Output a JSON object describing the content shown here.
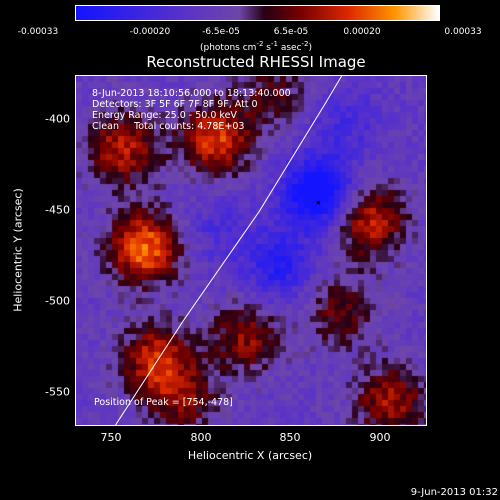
{
  "chart_data": {
    "type": "heatmap",
    "title": "Reconstructed RHESSI Image",
    "xlabel": "Heliocentric X (arcsec)",
    "ylabel": "Heliocentric Y (arcsec)",
    "xlim": [
      730,
      925
    ],
    "ylim": [
      -568,
      -375
    ],
    "x_ticks": [
      "750",
      "800",
      "850",
      "900"
    ],
    "y_ticks": [
      "-400",
      "-450",
      "-500",
      "-550"
    ],
    "colorbar": {
      "ticks": [
        "-0.00033",
        "-0.00020",
        "-6.5e-05",
        "6.5e-05",
        "0.00020",
        "0.00033"
      ],
      "unit": "(photons cm-2 s-1 asec-2)",
      "range": [
        -0.00033,
        0.00033
      ]
    },
    "annotations": {
      "time_range": "8-Jun-2013 18:10:56.000 to 18:13:40.000",
      "detectors": "Detectors: 3F 5F 6F 7F 8F 9F, Att 0",
      "energy_range": "Energy Range: 25.0 - 50.0 keV",
      "method_counts": "Clean     Total counts: 4.78E+03",
      "peak_position": "Position of Peak = [754,-478]"
    },
    "limb_curve": [
      [
        752,
        -568
      ],
      [
        790,
        -510
      ],
      [
        832,
        -450
      ],
      [
        869,
        -390
      ],
      [
        878,
        -375
      ]
    ],
    "sources": [
      {
        "x": 768,
        "y": -470,
        "amplitude": 0.00031
      },
      {
        "x": 756,
        "y": -415,
        "amplitude": 0.00022
      },
      {
        "x": 808,
        "y": -410,
        "amplitude": 0.00026
      },
      {
        "x": 775,
        "y": -532,
        "amplitude": 0.00024
      },
      {
        "x": 825,
        "y": -520,
        "amplitude": 0.00018
      },
      {
        "x": 790,
        "y": -555,
        "amplitude": 0.00015
      },
      {
        "x": 893,
        "y": -455,
        "amplitude": 0.00024
      },
      {
        "x": 878,
        "y": -505,
        "amplitude": 0.00015
      },
      {
        "x": 905,
        "y": -555,
        "amplitude": 0.0002
      },
      {
        "x": 840,
        "y": -385,
        "amplitude": 0.00012
      },
      {
        "x": 865,
        "y": -440,
        "amplitude": -0.00033
      },
      {
        "x": 843,
        "y": -480,
        "amplitude": -0.00018
      },
      {
        "x": 810,
        "y": -460,
        "amplitude": -8e-05
      },
      {
        "x": 880,
        "y": -400,
        "amplitude": -0.0001
      }
    ]
  },
  "footer": {
    "date": "9-Jun-2013 01:32"
  }
}
